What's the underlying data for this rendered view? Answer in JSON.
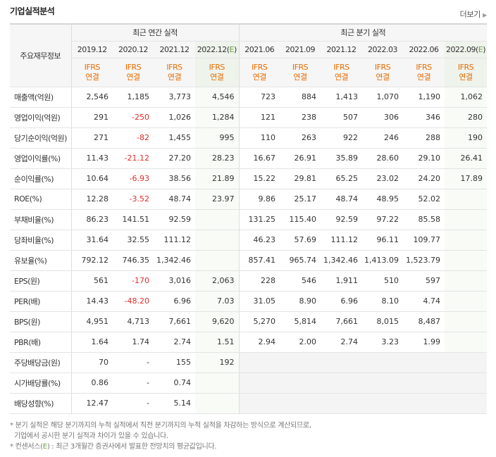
{
  "section": {
    "title": "기업실적분석",
    "more": "더보기"
  },
  "header": {
    "row_label": "주요재무정보",
    "annual_group": "최근 연간 실적",
    "quarter_group": "최근 분기 실적",
    "periods": [
      "2019.12",
      "2020.12",
      "2021.12",
      "2022.12(E)",
      "2021.06",
      "2021.09",
      "2021.12",
      "2022.03",
      "2022.06",
      "2022.09(E)"
    ],
    "ifrs_top": "IFRS",
    "ifrs_bottom": "연결"
  },
  "rows": [
    {
      "label": "매출액(억원)",
      "values": [
        "2,546",
        "1,185",
        "3,773",
        "4,546",
        "723",
        "884",
        "1,413",
        "1,070",
        "1,190",
        "1,062"
      ]
    },
    {
      "label": "영업이익(억원)",
      "values": [
        "291",
        "-250",
        "1,026",
        "1,284",
        "121",
        "238",
        "507",
        "306",
        "346",
        "280"
      ]
    },
    {
      "label": "당기순이익(억원)",
      "values": [
        "271",
        "-82",
        "1,455",
        "995",
        "110",
        "263",
        "922",
        "246",
        "288",
        "190"
      ]
    },
    {
      "label": "영업이익률(%)",
      "values": [
        "11.43",
        "-21.12",
        "27.20",
        "28.23",
        "16.67",
        "26.91",
        "35.89",
        "28.60",
        "29.10",
        "26.41"
      ]
    },
    {
      "label": "순이익률(%)",
      "values": [
        "10.64",
        "-6.93",
        "38.56",
        "21.89",
        "15.22",
        "29.81",
        "65.25",
        "23.02",
        "24.20",
        "17.89"
      ]
    },
    {
      "label": "ROE(%)",
      "values": [
        "12.28",
        "-3.52",
        "48.74",
        "23.97",
        "9.86",
        "25.17",
        "48.74",
        "48.95",
        "52.02",
        ""
      ]
    },
    {
      "label": "부채비율(%)",
      "values": [
        "86.23",
        "141.51",
        "92.59",
        "",
        "131.25",
        "115.40",
        "92.59",
        "97.22",
        "85.58",
        ""
      ]
    },
    {
      "label": "당좌비율(%)",
      "values": [
        "31.64",
        "32.55",
        "111.12",
        "",
        "46.23",
        "57.69",
        "111.12",
        "96.11",
        "109.77",
        ""
      ]
    },
    {
      "label": "유보율(%)",
      "values": [
        "792.12",
        "746.35",
        "1,342.46",
        "",
        "857.41",
        "965.74",
        "1,342.46",
        "1,413.09",
        "1,523.79",
        ""
      ]
    },
    {
      "label": "EPS(원)",
      "values": [
        "561",
        "-170",
        "3,016",
        "2,063",
        "228",
        "546",
        "1,911",
        "510",
        "597",
        ""
      ]
    },
    {
      "label": "PER(배)",
      "values": [
        "14.43",
        "-48.20",
        "6.96",
        "7.03",
        "31.05",
        "8.90",
        "6.96",
        "8.10",
        "4.74",
        ""
      ]
    },
    {
      "label": "BPS(원)",
      "values": [
        "4,951",
        "4,713",
        "7,661",
        "9,620",
        "5,270",
        "5,814",
        "7,661",
        "8,015",
        "8,487",
        ""
      ]
    },
    {
      "label": "PBR(배)",
      "values": [
        "1.64",
        "1.74",
        "2.74",
        "1.51",
        "2.94",
        "2.00",
        "2.74",
        "3.23",
        "1.99",
        ""
      ]
    },
    {
      "label": "주당배당금(원)",
      "values": [
        "70",
        "-",
        "155",
        "192",
        "",
        "",
        "",
        "",
        "",
        ""
      ]
    },
    {
      "label": "시가배당률(%)",
      "values": [
        "0.86",
        "-",
        "0.74",
        "",
        "",
        "",
        "",
        "",
        "",
        ""
      ]
    },
    {
      "label": "배당성향(%)",
      "values": [
        "12.47",
        "-",
        "5.14",
        "",
        "",
        "",
        "",
        "",
        "",
        ""
      ]
    }
  ],
  "notes": {
    "line1": "* 분기 실적은 해당 분기까지의 누적 실적에서 직전 분기까지의 누적 실적을 차감하는 방식으로 계산되므로,",
    "line2": "기업에서 공시한 분기 실적과 차이가 있을 수 있습니다.",
    "line3_prefix": "* 컨센서스(",
    "line3_e": "E",
    "line3_suffix": ") : 최근 3개월간 증권사에서 발표한 전망치의 평균값입니다."
  },
  "colors": {
    "negative": "#e22c2c",
    "ifrs": "#e86c00",
    "estimate_mark": "#6b9e3e"
  }
}
